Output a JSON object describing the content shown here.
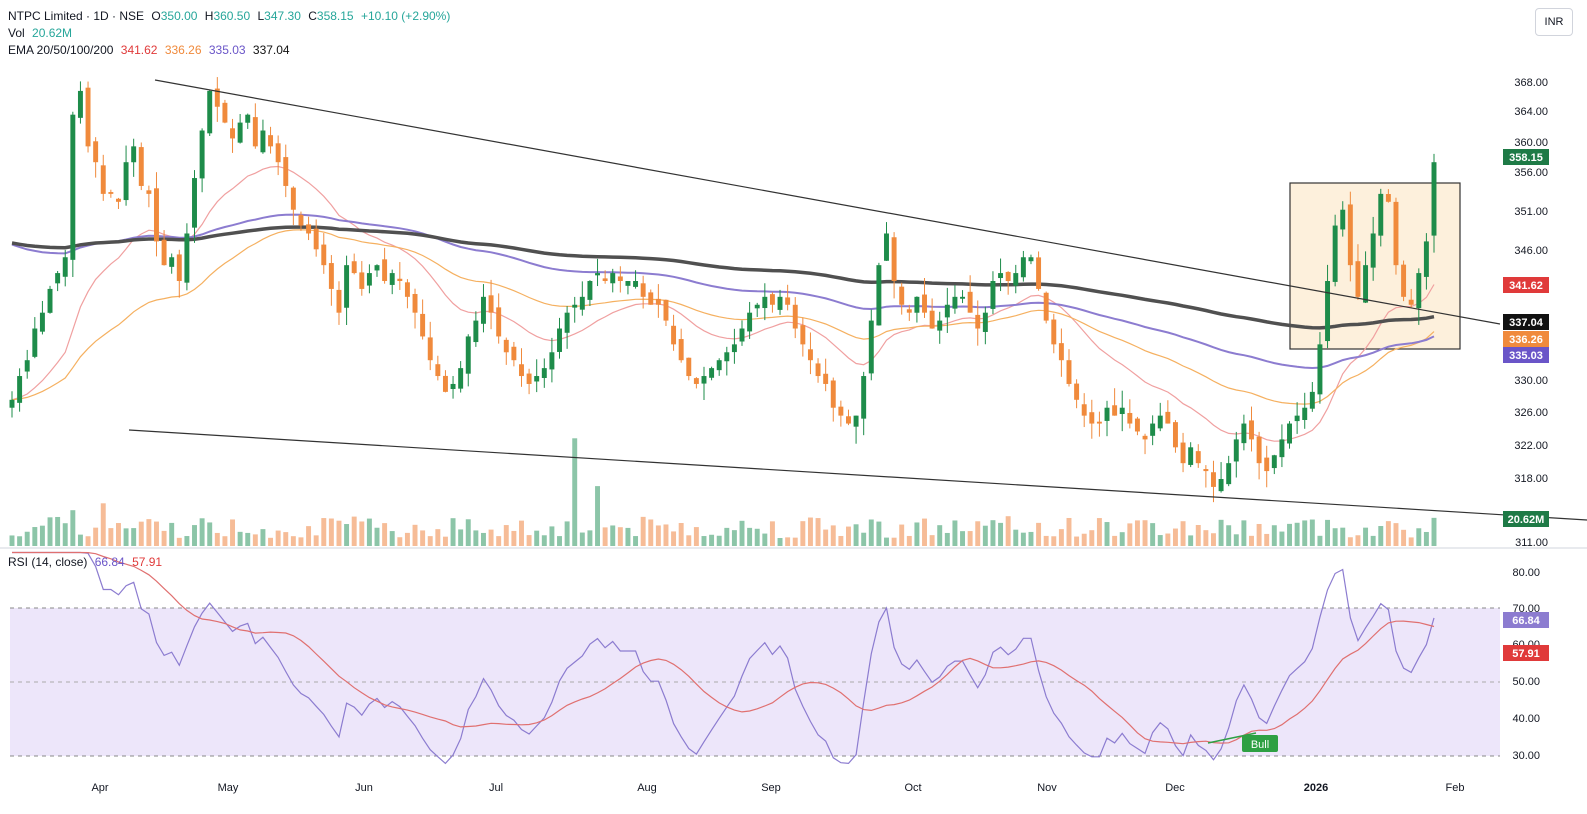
{
  "header": {
    "symbol": "NTPC Limited · 1D · NSE",
    "open_label": "O",
    "open": "350.00",
    "high_label": "H",
    "high": "360.50",
    "low_label": "L",
    "low": "347.30",
    "close_label": "C",
    "close": "358.15",
    "change": "+10.10 (+2.90%)",
    "vol_label": "Vol",
    "vol_value": "20.62M",
    "ema_label": "EMA 20/50/100/200",
    "ema20": "341.62",
    "ema50": "336.26",
    "ema100": "335.03",
    "ema200": "337.04",
    "rsi_label": "RSI (14, close)",
    "rsi_value": "66.84",
    "rsi_ma": "57.91",
    "currency": "INR"
  },
  "colors": {
    "up": "#26a69a",
    "up_candle": "#1e8c4a",
    "down": "#f08a3c",
    "ema20": "#f0a0a0",
    "ema50": "#f5b060",
    "ema100": "#8c7cd0",
    "ema200": "#505050",
    "rsi": "#8c7cd0",
    "rsi_ma": "#e07070",
    "rsi_band": "#ede6fa"
  },
  "chart_data": [
    {
      "type": "candlestick",
      "title": "NTPC Limited · 1D · NSE",
      "x_ticks": [
        "Apr",
        "May",
        "Jun",
        "Jul",
        "Aug",
        "Sep",
        "Oct",
        "Nov",
        "Dec",
        "2026",
        "Feb"
      ],
      "y_ticks": [
        "368.00",
        "364.00",
        "360.00",
        "356.00",
        "351.00",
        "346.00",
        "330.00",
        "326.00",
        "322.00",
        "318.00",
        "311.00"
      ],
      "ylim": [
        310,
        371
      ],
      "close": [
        328,
        331,
        333,
        337,
        339,
        342,
        344,
        346,
        364,
        367,
        360,
        358,
        354,
        354,
        353,
        358,
        360,
        355,
        354,
        348,
        345,
        346,
        343,
        349,
        356,
        362,
        367,
        365,
        363,
        361,
        363,
        364,
        360,
        362,
        360,
        358,
        355,
        352,
        350,
        349,
        347,
        345,
        342,
        339,
        345,
        344,
        342,
        344,
        345,
        343,
        344,
        343,
        341,
        339,
        336,
        333,
        331,
        329,
        330,
        332,
        336,
        338,
        341,
        339,
        336,
        334,
        333,
        331,
        330,
        331,
        332,
        334,
        337,
        339,
        340,
        341,
        343,
        344,
        343,
        344,
        343,
        343,
        343,
        341,
        340,
        340,
        338,
        335,
        333,
        331,
        330,
        331,
        332,
        333,
        334,
        335,
        337,
        339,
        340,
        341,
        340,
        341,
        340,
        337,
        335,
        333,
        331,
        330,
        327,
        326,
        325,
        326,
        331,
        338,
        345,
        349,
        343,
        340,
        339,
        341,
        339,
        337,
        338,
        340,
        341,
        341,
        339,
        337,
        339,
        343,
        344,
        343,
        344,
        346,
        346,
        342,
        338,
        335,
        333,
        330,
        328,
        326,
        325,
        325,
        327,
        326,
        327,
        325,
        324,
        323,
        325,
        326,
        325,
        322,
        320,
        322,
        320,
        319,
        317,
        318,
        320,
        323,
        325,
        323,
        320,
        319,
        321,
        323,
        325,
        326,
        327,
        329,
        335,
        343,
        350,
        352,
        345,
        341,
        345,
        349,
        354,
        353,
        345,
        341,
        340,
        344,
        348,
        358
      ],
      "annotations": [
        "Bull"
      ],
      "volume_value": "20.62M"
    },
    {
      "type": "line",
      "title": "RSI (14, close)",
      "y_ticks": [
        "80.00",
        "70.00",
        "60.00",
        "50.00",
        "40.00",
        "30.00"
      ],
      "ylim": [
        27,
        83
      ],
      "bands": [
        30,
        50,
        70
      ],
      "series": [
        {
          "name": "RSI",
          "last": 66.84
        },
        {
          "name": "RSI MA",
          "last": 57.91
        }
      ]
    }
  ],
  "price_badges": [
    "358.15",
    "341.62",
    "337.04",
    "336.26",
    "335.03",
    "20.62M"
  ],
  "rsi_badges": [
    "66.84",
    "57.91"
  ]
}
